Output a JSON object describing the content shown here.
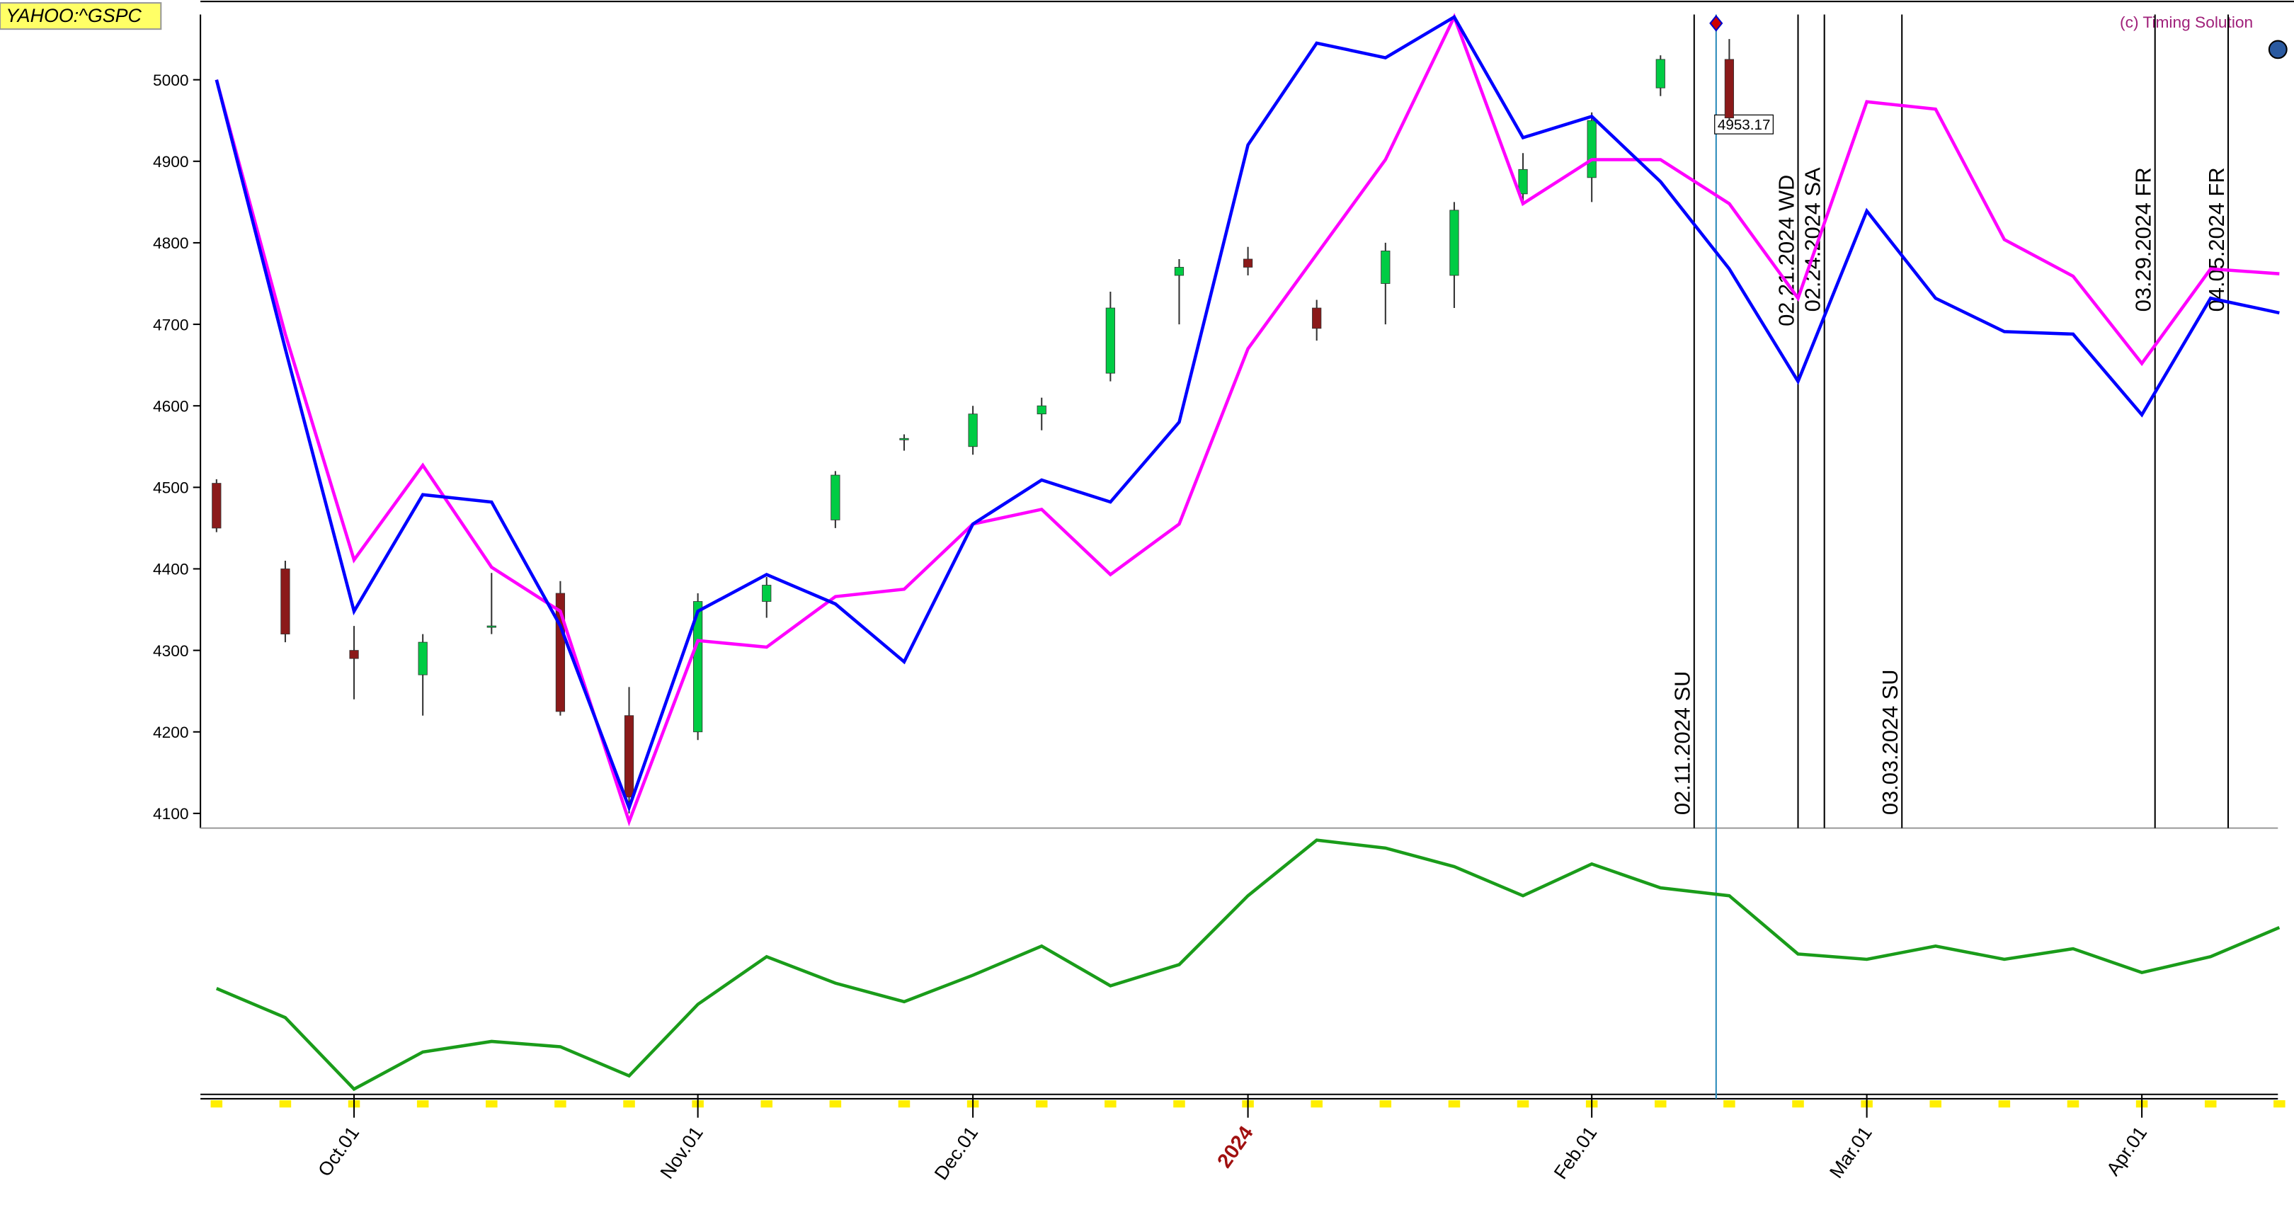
{
  "chart_data": [
    {
      "type": "candlestick",
      "symbol": "YAHOO:^GSPC",
      "copyright": "(c) Timing Solution",
      "last_price": 4953.17,
      "ylim": [
        4082,
        5080
      ],
      "yticks": [
        4100,
        4200,
        4300,
        4400,
        4500,
        4600,
        4700,
        4800,
        4900,
        5000
      ],
      "up_color": "#00cc44",
      "down_color": "#8b1a1a",
      "open": [
        4505,
        4400,
        4300,
        4270,
        4330,
        4370,
        4220,
        4200,
        4360,
        4460,
        4560,
        4550,
        4590,
        4640,
        4760,
        4780,
        4720,
        4750,
        4760,
        4860,
        4880,
        4990,
        5025,
        null,
        null,
        null,
        null,
        null,
        null,
        null,
        null
      ],
      "high": [
        4510,
        4410,
        4330,
        4320,
        4395,
        4385,
        4255,
        4370,
        4390,
        4520,
        4565,
        4600,
        4610,
        4740,
        4780,
        4795,
        4730,
        4800,
        4850,
        4910,
        4960,
        5030,
        5050,
        null,
        null,
        null,
        null,
        null,
        null,
        null,
        null
      ],
      "low": [
        4445,
        4310,
        4240,
        4220,
        4320,
        4220,
        4100,
        4190,
        4340,
        4450,
        4545,
        4540,
        4570,
        4630,
        4700,
        4760,
        4680,
        4700,
        4720,
        4850,
        4850,
        4980,
        4950,
        null,
        null,
        null,
        null,
        null,
        null,
        null,
        null
      ],
      "close": [
        4450,
        4320,
        4290,
        4310,
        4330,
        4225,
        4120,
        4360,
        4380,
        4515,
        4560,
        4590,
        4600,
        4720,
        4770,
        4770,
        4695,
        4790,
        4840,
        4890,
        4950,
        5025,
        4953.17,
        null,
        null,
        null,
        null,
        null,
        null,
        null,
        null
      ],
      "series": [
        {
          "color": "#ff00ff",
          "values": [
            5000,
            4688,
            4411,
            4527,
            4402,
            4348,
            4090,
            4312,
            4304,
            4366,
            4375,
            4455,
            4473,
            4393,
            4455,
            4670,
            4786,
            4902,
            5077,
            4848,
            4902,
            4902,
            4848,
            4732,
            4973,
            4964,
            4804,
            4759,
            4652,
            4768,
            4762
          ]
        },
        {
          "color": "#0000ff",
          "values": [
            5000,
            4670,
            4348,
            4491,
            4482,
            4330,
            4107,
            4348,
            4393,
            4357,
            4286,
            4455,
            4509,
            4482,
            4580,
            4920,
            5045,
            5027,
            5077,
            4929,
            4955,
            4875,
            4768,
            4630,
            4839,
            4732,
            4691,
            4688,
            4589,
            4732,
            4714
          ]
        }
      ],
      "annotations": [
        "02.11.2024 SU",
        "02.21.2024 WD",
        "02.24.2024 SA",
        "03.03.2024 SU",
        "03.29.2024 FR",
        "04.05.2024 FR"
      ]
    },
    {
      "type": "line",
      "color": "#1a9c1a",
      "ylim": [
        0,
        100
      ],
      "values": [
        40,
        29,
        2,
        16,
        20,
        18,
        7,
        34,
        52,
        42,
        35,
        45,
        56,
        41,
        49,
        75,
        96,
        93,
        86,
        75,
        87,
        78,
        75,
        53,
        51,
        56,
        51,
        55,
        46,
        52,
        63
      ],
      "categories": [
        null,
        null,
        "Oct.01",
        null,
        null,
        null,
        null,
        "Nov.01",
        null,
        null,
        null,
        "Dec.01",
        null,
        null,
        null,
        "2024",
        null,
        null,
        null,
        null,
        "Feb.01",
        null,
        null,
        null,
        "Mar.01",
        null,
        null,
        null,
        "Apr.01",
        null,
        null
      ]
    }
  ]
}
